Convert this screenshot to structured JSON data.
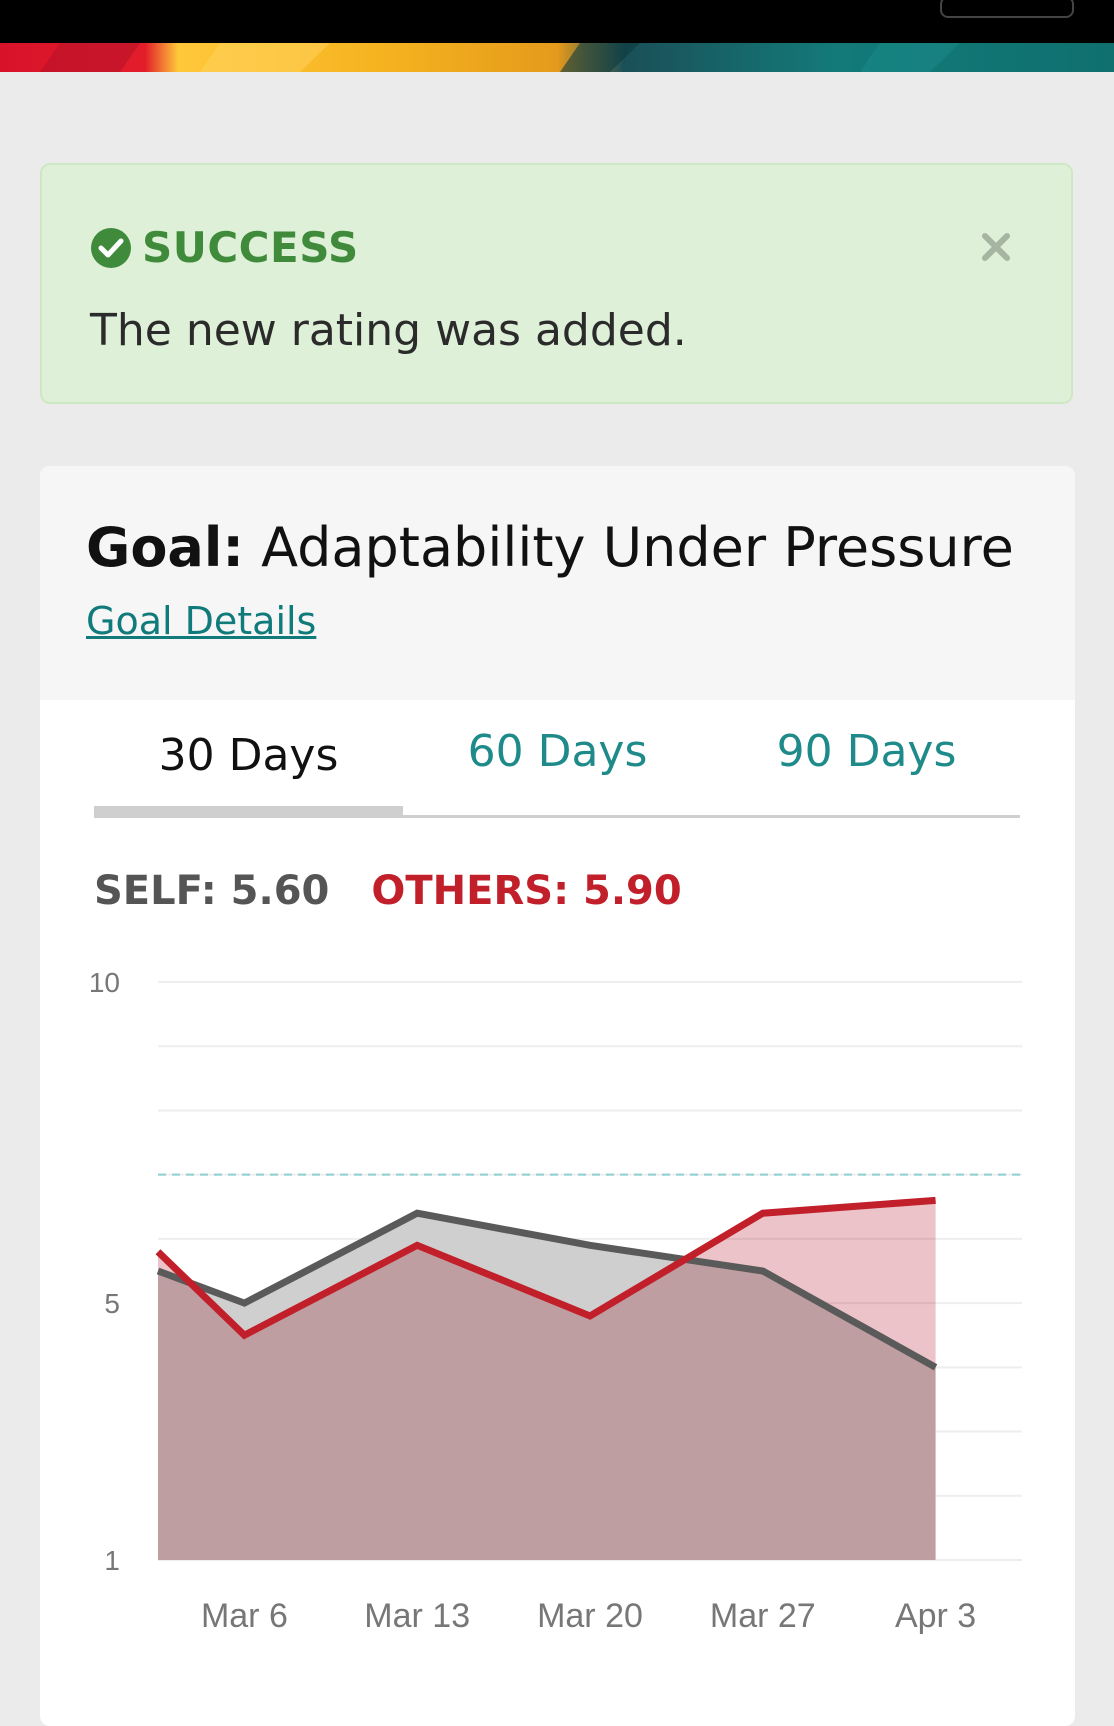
{
  "alert": {
    "title": "SUCCESS",
    "message": "The new rating was added.",
    "success_color": "#3f8b3b"
  },
  "goal": {
    "label": "Goal:",
    "name": "Adaptability Under Pressure",
    "details_link": "Goal Details"
  },
  "tabs": [
    {
      "label": "30 Days",
      "active": true
    },
    {
      "label": "60 Days",
      "active": false
    },
    {
      "label": "90 Days",
      "active": false
    }
  ],
  "stats": {
    "self": "SELF: 5.60",
    "others": "OTHERS: 5.90"
  },
  "chart_data": {
    "type": "area",
    "categories": [
      "Mar 6",
      "Mar 13",
      "Mar 20",
      "Mar 27",
      "Apr 3"
    ],
    "y_ticks": [
      "10",
      "5",
      "1"
    ],
    "ylim": [
      1,
      10
    ],
    "target_line": 7,
    "grid": true,
    "series": [
      {
        "key": "self",
        "color": "#5a5a5a",
        "fill": "#cfcfcf",
        "x": [
          0,
          1,
          3,
          5,
          7,
          9
        ],
        "values": [
          5.5,
          5.0,
          6.4,
          5.9,
          5.5,
          4.0
        ]
      },
      {
        "key": "others",
        "color": "#c11f2a",
        "fill": "#e8b4ba",
        "x": [
          0,
          1,
          3,
          5,
          7,
          9
        ],
        "values": [
          5.8,
          4.5,
          5.9,
          4.8,
          6.4,
          6.6
        ]
      }
    ]
  }
}
